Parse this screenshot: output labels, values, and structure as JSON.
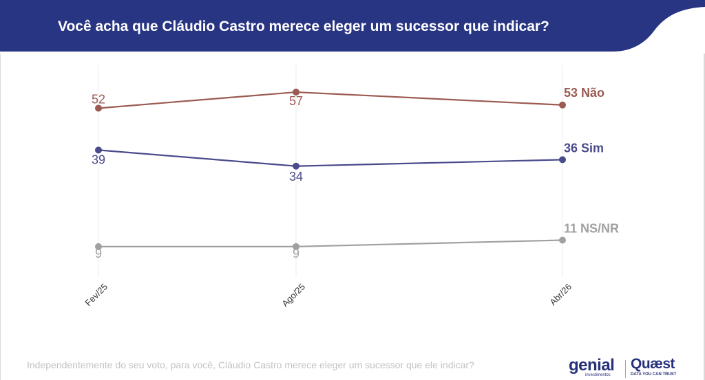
{
  "title": "Você acha que Cláudio Castro merece eleger um sucessor que indicar?",
  "footnote": "Independentemente do seu voto, para você, Cláudio Castro merece eleger um sucessor que ele indicar?",
  "logos": {
    "genial": "genial",
    "genial_sub": "investimentos",
    "quaest": "Quæst",
    "quaest_sub": "DATA YOU CAN TRUST"
  },
  "colors": {
    "header_bg": "#283583",
    "nao": "#9b5a52",
    "sim": "#4a4a8c",
    "nsnr": "#a0a0a0"
  },
  "chart_data": {
    "type": "line",
    "categories": [
      "Fev/25",
      "Ago/25",
      "Abr/26"
    ],
    "ylim": [
      0,
      60
    ],
    "grid": "vertical",
    "series": [
      {
        "name": "Não",
        "key": "nao",
        "values": [
          52,
          57,
          53
        ],
        "labels": [
          "52",
          "57",
          "53 Não"
        ]
      },
      {
        "name": "Sim",
        "key": "sim",
        "values": [
          39,
          34,
          36
        ],
        "labels": [
          "39",
          "34",
          "36 Sim"
        ]
      },
      {
        "name": "NS/NR",
        "key": "nsnr",
        "values": [
          9,
          9,
          11
        ],
        "labels": [
          "9",
          "9",
          "11 NS/NR"
        ]
      }
    ]
  }
}
